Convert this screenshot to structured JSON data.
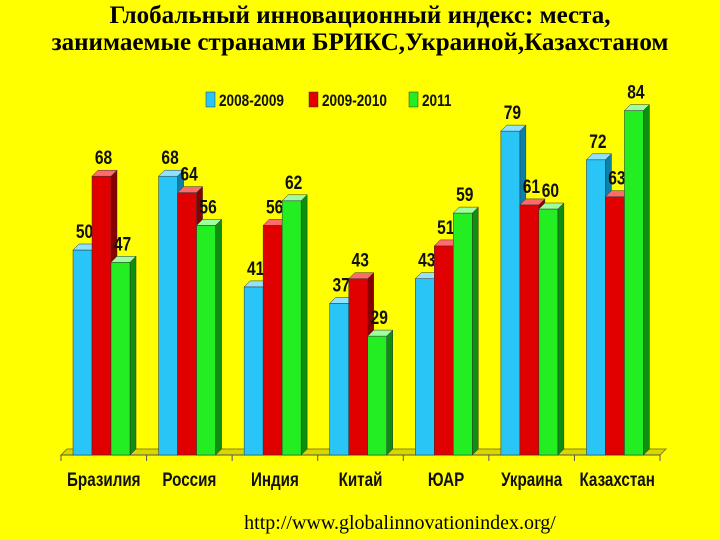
{
  "title": {
    "line1": "Глобальный инновационный индекс: места,",
    "line2": "занимаемые странами БРИКС,Украиной,Казахстаном"
  },
  "source_url": "http://www.globalinnovationindex.org/",
  "colors": {
    "background": "#ffff00",
    "series": [
      "#29c5f6",
      "#e00000",
      "#22ee22"
    ],
    "series_side": [
      "#0e7fa8",
      "#880000",
      "#0f8f0f"
    ],
    "series_top": [
      "#8fe3ff",
      "#ff6a6a",
      "#9dff9d"
    ]
  },
  "chart_data": {
    "type": "bar",
    "categories": [
      "Бразилия",
      "Россия",
      "Индия",
      "Китай",
      "ЮАР",
      "Украина",
      "Казахстан"
    ],
    "series": [
      {
        "name": "2008-2009",
        "values": [
          50,
          68,
          41,
          37,
          43,
          79,
          72
        ]
      },
      {
        "name": "2009-2010",
        "values": [
          68,
          64,
          56,
          43,
          51,
          61,
          63
        ]
      },
      {
        "name": "2011",
        "values": [
          47,
          56,
          62,
          29,
          59,
          60,
          84
        ]
      }
    ],
    "ylim": [
      0,
      90
    ],
    "legend_position": "top",
    "grid": false,
    "style": "3d-bar"
  }
}
